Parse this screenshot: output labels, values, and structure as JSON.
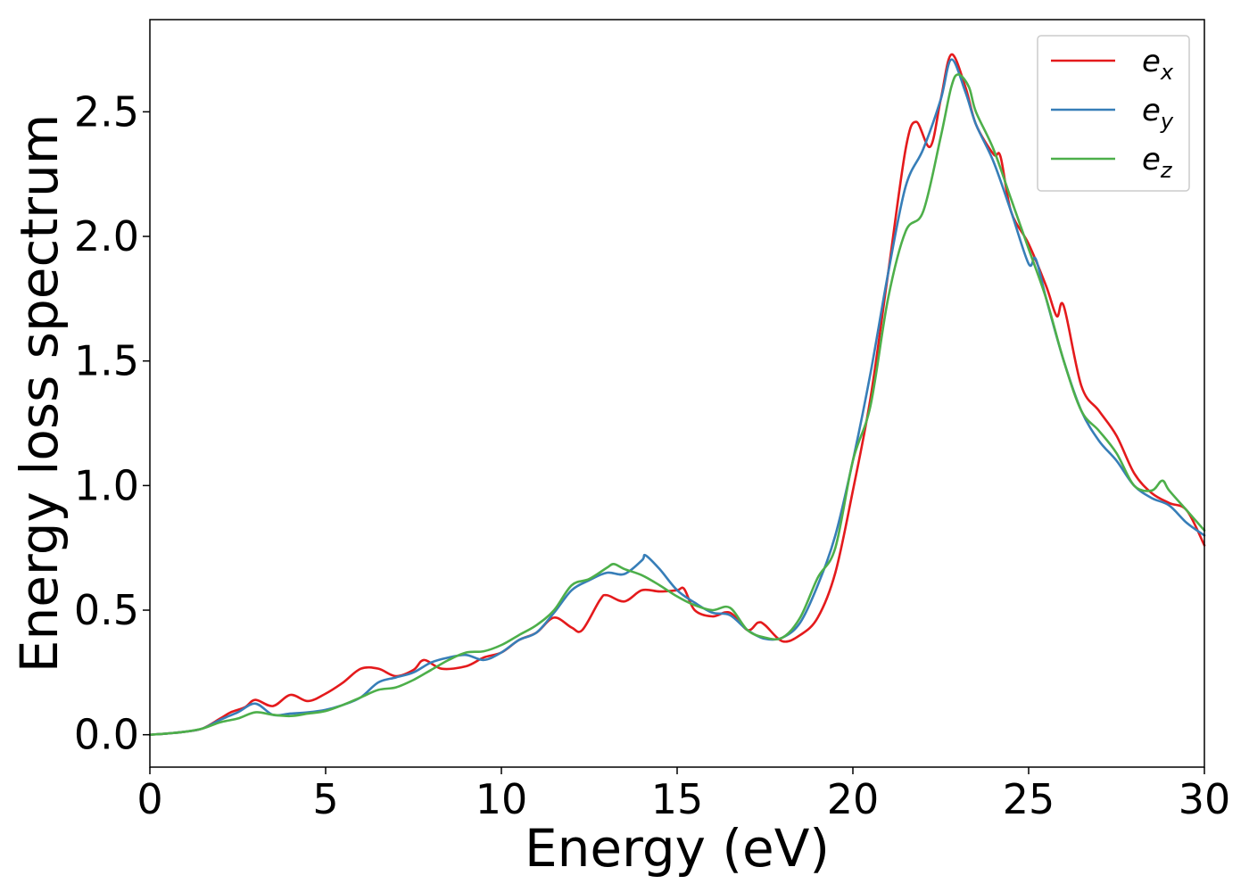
{
  "chart_data": {
    "type": "line",
    "title": "",
    "xlabel": "Energy (eV)",
    "ylabel": "Energy loss spectrum",
    "xlim": [
      0,
      30
    ],
    "ylim": [
      -0.13,
      2.87
    ],
    "xticks": [
      "0",
      "5",
      "10",
      "15",
      "20",
      "25",
      "30"
    ],
    "yticks": [
      "0.0",
      "0.5",
      "1.0",
      "1.5",
      "2.0",
      "2.5"
    ],
    "grid": false,
    "legend_position": "top-right",
    "series": [
      {
        "name": "e_x",
        "legend_base": "e",
        "legend_sub": "x",
        "color": "#e41a1c",
        "points": [
          [
            0,
            0.0
          ],
          [
            0.5,
            0.005
          ],
          [
            1,
            0.012
          ],
          [
            1.5,
            0.025
          ],
          [
            2,
            0.065
          ],
          [
            2.3,
            0.09
          ],
          [
            2.7,
            0.11
          ],
          [
            3,
            0.14
          ],
          [
            3.5,
            0.115
          ],
          [
            4,
            0.16
          ],
          [
            4.5,
            0.135
          ],
          [
            5,
            0.165
          ],
          [
            5.5,
            0.21
          ],
          [
            6,
            0.265
          ],
          [
            6.5,
            0.265
          ],
          [
            7,
            0.235
          ],
          [
            7.5,
            0.26
          ],
          [
            7.8,
            0.3
          ],
          [
            8.3,
            0.265
          ],
          [
            9,
            0.275
          ],
          [
            9.5,
            0.31
          ],
          [
            10,
            0.33
          ],
          [
            10.5,
            0.38
          ],
          [
            11,
            0.41
          ],
          [
            11.5,
            0.47
          ],
          [
            12,
            0.43
          ],
          [
            12.3,
            0.42
          ],
          [
            12.8,
            0.54
          ],
          [
            13,
            0.56
          ],
          [
            13.5,
            0.535
          ],
          [
            14,
            0.58
          ],
          [
            14.5,
            0.575
          ],
          [
            15,
            0.58
          ],
          [
            15.2,
            0.585
          ],
          [
            15.5,
            0.5
          ],
          [
            16,
            0.475
          ],
          [
            16.5,
            0.49
          ],
          [
            17,
            0.42
          ],
          [
            17.3,
            0.45
          ],
          [
            17.5,
            0.44
          ],
          [
            18,
            0.375
          ],
          [
            18.5,
            0.4
          ],
          [
            19,
            0.47
          ],
          [
            19.5,
            0.65
          ],
          [
            20,
            0.98
          ],
          [
            20.5,
            1.35
          ],
          [
            21,
            1.85
          ],
          [
            21.5,
            2.35
          ],
          [
            21.8,
            2.46
          ],
          [
            22.2,
            2.36
          ],
          [
            22.5,
            2.55
          ],
          [
            22.8,
            2.73
          ],
          [
            23.2,
            2.6
          ],
          [
            23.5,
            2.45
          ],
          [
            24,
            2.33
          ],
          [
            24.2,
            2.32
          ],
          [
            24.5,
            2.1
          ],
          [
            25,
            1.97
          ],
          [
            25.5,
            1.8
          ],
          [
            25.8,
            1.68
          ],
          [
            26,
            1.72
          ],
          [
            26.5,
            1.4
          ],
          [
            27,
            1.3
          ],
          [
            27.5,
            1.2
          ],
          [
            28,
            1.05
          ],
          [
            28.5,
            0.97
          ],
          [
            29,
            0.93
          ],
          [
            29.5,
            0.9
          ],
          [
            30,
            0.76
          ]
        ]
      },
      {
        "name": "e_y",
        "legend_base": "e",
        "legend_sub": "y",
        "color": "#377eb8",
        "points": [
          [
            0,
            0.0
          ],
          [
            0.5,
            0.005
          ],
          [
            1,
            0.012
          ],
          [
            1.5,
            0.025
          ],
          [
            2,
            0.06
          ],
          [
            2.5,
            0.09
          ],
          [
            3,
            0.125
          ],
          [
            3.5,
            0.08
          ],
          [
            4,
            0.085
          ],
          [
            4.5,
            0.09
          ],
          [
            5,
            0.1
          ],
          [
            5.5,
            0.12
          ],
          [
            6,
            0.15
          ],
          [
            6.5,
            0.21
          ],
          [
            7,
            0.23
          ],
          [
            7.5,
            0.25
          ],
          [
            8,
            0.29
          ],
          [
            8.5,
            0.31
          ],
          [
            9,
            0.32
          ],
          [
            9.5,
            0.3
          ],
          [
            10,
            0.33
          ],
          [
            10.5,
            0.38
          ],
          [
            11,
            0.41
          ],
          [
            11.5,
            0.49
          ],
          [
            12,
            0.58
          ],
          [
            12.5,
            0.62
          ],
          [
            13,
            0.65
          ],
          [
            13.5,
            0.645
          ],
          [
            14,
            0.7
          ],
          [
            14.1,
            0.72
          ],
          [
            14.5,
            0.665
          ],
          [
            15,
            0.58
          ],
          [
            15.5,
            0.53
          ],
          [
            16,
            0.49
          ],
          [
            16.5,
            0.48
          ],
          [
            17,
            0.42
          ],
          [
            17.5,
            0.385
          ],
          [
            18,
            0.39
          ],
          [
            18.5,
            0.45
          ],
          [
            19,
            0.6
          ],
          [
            19.5,
            0.8
          ],
          [
            20,
            1.1
          ],
          [
            20.5,
            1.45
          ],
          [
            21,
            1.85
          ],
          [
            21.5,
            2.2
          ],
          [
            22,
            2.35
          ],
          [
            22.5,
            2.55
          ],
          [
            22.8,
            2.71
          ],
          [
            23.2,
            2.58
          ],
          [
            23.5,
            2.45
          ],
          [
            24,
            2.3
          ],
          [
            24.5,
            2.1
          ],
          [
            25,
            1.89
          ],
          [
            25.2,
            1.91
          ],
          [
            25.5,
            1.75
          ],
          [
            26,
            1.5
          ],
          [
            26.5,
            1.3
          ],
          [
            27,
            1.18
          ],
          [
            27.5,
            1.1
          ],
          [
            28,
            1.0
          ],
          [
            28.5,
            0.95
          ],
          [
            29,
            0.92
          ],
          [
            29.5,
            0.85
          ],
          [
            30,
            0.8
          ]
        ]
      },
      {
        "name": "e_z",
        "legend_base": "e",
        "legend_sub": "z",
        "color": "#4daf4a",
        "points": [
          [
            0,
            0.0
          ],
          [
            0.5,
            0.005
          ],
          [
            1,
            0.012
          ],
          [
            1.5,
            0.025
          ],
          [
            2,
            0.05
          ],
          [
            2.5,
            0.065
          ],
          [
            3,
            0.09
          ],
          [
            3.5,
            0.08
          ],
          [
            4,
            0.075
          ],
          [
            4.5,
            0.085
          ],
          [
            5,
            0.095
          ],
          [
            5.5,
            0.12
          ],
          [
            6,
            0.15
          ],
          [
            6.5,
            0.18
          ],
          [
            7,
            0.19
          ],
          [
            7.5,
            0.22
          ],
          [
            8,
            0.26
          ],
          [
            8.5,
            0.3
          ],
          [
            9,
            0.33
          ],
          [
            9.5,
            0.335
          ],
          [
            10,
            0.36
          ],
          [
            10.5,
            0.4
          ],
          [
            11,
            0.44
          ],
          [
            11.5,
            0.5
          ],
          [
            12,
            0.6
          ],
          [
            12.5,
            0.625
          ],
          [
            13,
            0.67
          ],
          [
            13.2,
            0.685
          ],
          [
            13.5,
            0.665
          ],
          [
            14,
            0.64
          ],
          [
            14.5,
            0.6
          ],
          [
            15,
            0.555
          ],
          [
            15.5,
            0.52
          ],
          [
            16,
            0.5
          ],
          [
            16.5,
            0.51
          ],
          [
            17,
            0.42
          ],
          [
            17.5,
            0.39
          ],
          [
            18,
            0.39
          ],
          [
            18.5,
            0.47
          ],
          [
            19,
            0.63
          ],
          [
            19.5,
            0.75
          ],
          [
            20,
            1.1
          ],
          [
            20.5,
            1.32
          ],
          [
            21,
            1.75
          ],
          [
            21.5,
            2.02
          ],
          [
            22,
            2.1
          ],
          [
            22.5,
            2.4
          ],
          [
            22.8,
            2.6
          ],
          [
            23,
            2.65
          ],
          [
            23.3,
            2.6
          ],
          [
            23.5,
            2.5
          ],
          [
            24,
            2.35
          ],
          [
            24.5,
            2.15
          ],
          [
            25,
            1.95
          ],
          [
            25.5,
            1.75
          ],
          [
            26,
            1.5
          ],
          [
            26.5,
            1.3
          ],
          [
            27,
            1.22
          ],
          [
            27.5,
            1.13
          ],
          [
            28,
            1.0
          ],
          [
            28.5,
            0.98
          ],
          [
            28.8,
            1.02
          ],
          [
            29,
            0.98
          ],
          [
            29.5,
            0.9
          ],
          [
            30,
            0.82
          ]
        ]
      }
    ]
  }
}
